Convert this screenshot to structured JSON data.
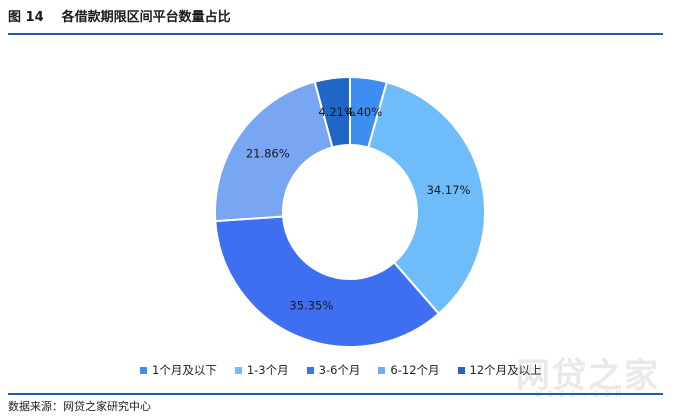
{
  "header": {
    "figure_label": "图 14",
    "title": "各借款期限区间平台数量占比"
  },
  "source": "数据来源：网贷之家研究中心",
  "watermark": {
    "text": "网贷之家",
    "sub": "WDZJ.COM"
  },
  "chart_data": {
    "type": "pie",
    "donut": true,
    "categories": [
      "1个月及以下",
      "1-3个月",
      "3-6个月",
      "6-12个月",
      "12个月及以上"
    ],
    "values": [
      4.4,
      34.17,
      35.35,
      21.86,
      4.21
    ],
    "labels": [
      "4.40%",
      "34.17%",
      "35.35%",
      "21.86%",
      "4.21%"
    ],
    "colors": [
      "#3d8ef0",
      "#6fbcfb",
      "#3d6ff0",
      "#78a6f3",
      "#1f66c7"
    ],
    "legend_position": "bottom"
  }
}
